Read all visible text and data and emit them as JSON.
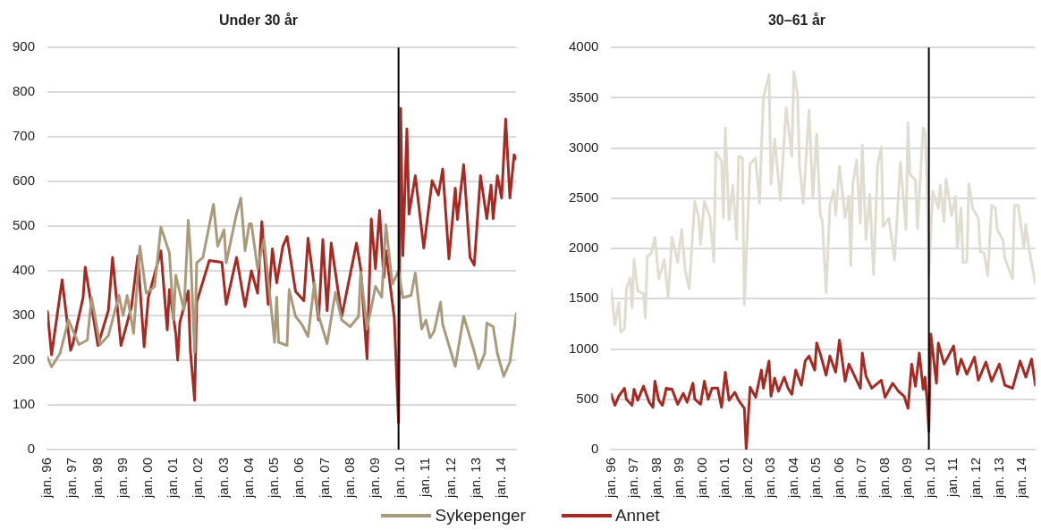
{
  "chart_data": [
    {
      "type": "line",
      "title": "Under 30 år",
      "grid": "y",
      "legend": "bottom",
      "xlim": [
        "1996-01",
        "2014-08"
      ],
      "xticks": [
        {
          "value": "1996-01",
          "label": "jan. 96"
        },
        {
          "value": "1997-01",
          "label": "jan. 97"
        },
        {
          "value": "1998-01",
          "label": "jan. 98"
        },
        {
          "value": "1999-01",
          "label": "jan. 99"
        },
        {
          "value": "2000-01",
          "label": "jan. 00"
        },
        {
          "value": "2001-01",
          "label": "jan. 01"
        },
        {
          "value": "2002-01",
          "label": "jan. 02"
        },
        {
          "value": "2003-01",
          "label": "jan. 03"
        },
        {
          "value": "2004-01",
          "label": "jan. 04"
        },
        {
          "value": "2005-01",
          "label": "jan. 05"
        },
        {
          "value": "2006-01",
          "label": "jan. 06"
        },
        {
          "value": "2007-01",
          "label": "jan. 07"
        },
        {
          "value": "2008-01",
          "label": "jan. 08"
        },
        {
          "value": "2009-01",
          "label": "jan. 09"
        },
        {
          "value": "2010-01",
          "label": "jan. 10"
        },
        {
          "value": "2011-01",
          "label": "jan. 11"
        },
        {
          "value": "2012-01",
          "label": "jan. 12"
        },
        {
          "value": "2013-01",
          "label": "jan. 13"
        },
        {
          "value": "2014-01",
          "label": "jan. 14"
        }
      ],
      "ylim": [
        0,
        900
      ],
      "yticks": [
        0,
        100,
        200,
        300,
        400,
        500,
        600,
        700,
        800,
        900
      ],
      "ref_lines": [
        {
          "axis": "x",
          "value": "2009-12",
          "color": "#000000"
        }
      ],
      "series": [
        {
          "name": "Sykepenger",
          "color": "#a99a7c",
          "x": [
            "1996-01",
            "1996-03",
            "1996-07",
            "1996-11",
            "1997-04",
            "1997-08",
            "1997-10",
            "1998-02",
            "1998-06",
            "1998-11",
            "1999-01",
            "1999-03",
            "1999-06",
            "1999-09",
            "1999-12",
            "2000-04",
            "2000-07",
            "2000-11",
            "2001-01",
            "2001-02",
            "2001-06",
            "2001-08",
            "2001-09",
            "2001-11",
            "2001-12",
            "2002-03",
            "2002-08",
            "2002-10",
            "2003-01",
            "2003-02",
            "2003-07",
            "2003-09",
            "2003-11",
            "2004-01",
            "2004-02",
            "2004-05",
            "2004-08",
            "2004-12",
            "2005-01",
            "2005-02",
            "2005-03",
            "2005-07",
            "2005-08",
            "2005-11",
            "2006-02",
            "2006-05",
            "2006-08",
            "2006-10",
            "2007-02",
            "2007-06",
            "2007-09",
            "2008-01",
            "2008-05",
            "2008-06",
            "2008-09",
            "2009-01",
            "2009-04",
            "2009-06",
            "2009-09",
            "2009-12",
            "2010-02",
            "2010-06",
            "2010-08",
            "2010-11",
            "2011-01",
            "2011-03",
            "2011-05",
            "2011-08",
            "2011-09",
            "2012-03",
            "2012-07",
            "2012-12",
            "2013-02",
            "2013-05",
            "2013-06",
            "2013-09",
            "2013-11",
            "2014-02",
            "2014-05",
            "2014-08"
          ],
          "values": [
            207,
            185,
            215,
            290,
            235,
            245,
            340,
            235,
            255,
            345,
            300,
            345,
            260,
            455,
            350,
            365,
            498,
            440,
            290,
            390,
            312,
            513,
            445,
            218,
            418,
            430,
            549,
            455,
            492,
            418,
            528,
            563,
            445,
            505,
            505,
            405,
            470,
            290,
            240,
            341,
            240,
            233,
            358,
            298,
            280,
            253,
            373,
            300,
            237,
            352,
            290,
            275,
            298,
            397,
            270,
            365,
            341,
            503,
            370,
            400,
            340,
            345,
            395,
            270,
            290,
            250,
            265,
            330,
            280,
            186,
            298,
            220,
            181,
            215,
            283,
            275,
            215,
            164,
            196,
            304
          ]
        },
        {
          "name": "Annet",
          "color": "#a52a24",
          "x": [
            "1996-01",
            "1996-03",
            "1996-08",
            "1996-12",
            "1997-01",
            "1997-06",
            "1997-07",
            "1998-01",
            "1998-06",
            "1998-08",
            "1998-12",
            "1999-05",
            "1999-08",
            "1999-11",
            "2000-01",
            "2000-07",
            "2000-10",
            "2000-11",
            "2001-02",
            "2001-03",
            "2001-04",
            "2001-08",
            "2001-09",
            "2001-11",
            "2001-12",
            "2002-06",
            "2002-12",
            "2003-02",
            "2003-07",
            "2003-11",
            "2004-02",
            "2004-05",
            "2004-07",
            "2004-10",
            "2004-12",
            "2005-02",
            "2005-05",
            "2005-07",
            "2005-11",
            "2006-03",
            "2006-05",
            "2006-10",
            "2006-12",
            "2007-02",
            "2007-04",
            "2007-09",
            "2008-04",
            "2008-06",
            "2008-09",
            "2008-11",
            "2009-01",
            "2009-03",
            "2009-05",
            "2009-06",
            "2009-10",
            "2009-12",
            "2010-01",
            "2010-02",
            "2010-04",
            "2010-05",
            "2010-08",
            "2010-12",
            "2011-04",
            "2011-07",
            "2011-09",
            "2011-12",
            "2012-03",
            "2012-04",
            "2012-07",
            "2012-10",
            "2012-12",
            "2013-03",
            "2013-06",
            "2013-08",
            "2013-09",
            "2013-11",
            "2014-01",
            "2014-03",
            "2014-05",
            "2014-07",
            "2014-08"
          ],
          "values": [
            309,
            212,
            380,
            222,
            235,
            341,
            408,
            233,
            311,
            430,
            233,
            319,
            433,
            230,
            341,
            445,
            268,
            358,
            260,
            200,
            285,
            355,
            220,
            110,
            330,
            423,
            419,
            325,
            430,
            320,
            400,
            350,
            510,
            325,
            449,
            373,
            455,
            477,
            354,
            333,
            473,
            290,
            470,
            311,
            462,
            298,
            462,
            405,
            203,
            516,
            405,
            535,
            385,
            445,
            294,
            60,
            764,
            434,
            718,
            527,
            613,
            451,
            602,
            570,
            628,
            427,
            585,
            515,
            638,
            430,
            413,
            613,
            517,
            592,
            517,
            613,
            563,
            740,
            563,
            660,
            650
          ]
        }
      ]
    },
    {
      "type": "line",
      "title": "30–61 år",
      "grid": "y",
      "xlim": [
        "1996-01",
        "2014-08"
      ],
      "xticks": [
        {
          "value": "1996-01",
          "label": "jan. 96"
        },
        {
          "value": "1997-01",
          "label": "jan. 97"
        },
        {
          "value": "1998-01",
          "label": "jan. 98"
        },
        {
          "value": "1999-01",
          "label": "jan. 99"
        },
        {
          "value": "2000-01",
          "label": "jan. 00"
        },
        {
          "value": "2001-01",
          "label": "jan. 01"
        },
        {
          "value": "2002-01",
          "label": "jan. 02"
        },
        {
          "value": "2003-01",
          "label": "jan. 03"
        },
        {
          "value": "2004-01",
          "label": "jan. 04"
        },
        {
          "value": "2005-01",
          "label": "jan. 05"
        },
        {
          "value": "2006-01",
          "label": "jan. 06"
        },
        {
          "value": "2007-01",
          "label": "jan. 07"
        },
        {
          "value": "2008-01",
          "label": "jan. 08"
        },
        {
          "value": "2009-01",
          "label": "jan. 09"
        },
        {
          "value": "2010-01",
          "label": "jan. 10"
        },
        {
          "value": "2011-01",
          "label": "jan. 11"
        },
        {
          "value": "2012-01",
          "label": "jan. 12"
        },
        {
          "value": "2013-01",
          "label": "jan. 13"
        },
        {
          "value": "2014-01",
          "label": "jan. 14"
        }
      ],
      "ylim": [
        0,
        4000
      ],
      "yticks": [
        0,
        500,
        1000,
        1500,
        2000,
        2500,
        3000,
        3500,
        4000
      ],
      "ref_lines": [
        {
          "axis": "x",
          "value": "2009-12",
          "color": "#000000"
        }
      ],
      "series": [
        {
          "color": "#e0dcd0",
          "x": [
            "1996-01",
            "1996-03",
            "1996-05",
            "1996-06",
            "1996-08",
            "1996-09",
            "1996-11",
            "1996-12",
            "1997-01",
            "1997-03",
            "1997-06",
            "1997-07",
            "1997-08",
            "1997-10",
            "1997-12",
            "1998-02",
            "1998-05",
            "1998-07",
            "1998-09",
            "1998-12",
            "1999-02",
            "1999-04",
            "1999-06",
            "1999-09",
            "1999-11",
            "1999-12",
            "2000-02",
            "2000-05",
            "2000-07",
            "2000-08",
            "2000-11",
            "2000-12",
            "2001-01",
            "2001-03",
            "2001-05",
            "2001-07",
            "2001-08",
            "2001-10",
            "2001-11",
            "2002-02",
            "2002-05",
            "2002-07",
            "2002-09",
            "2002-12",
            "2003-01",
            "2003-03",
            "2003-06",
            "2003-09",
            "2003-12",
            "2004-01",
            "2004-03",
            "2004-04",
            "2004-06",
            "2004-09",
            "2004-11",
            "2005-01",
            "2005-03",
            "2005-04",
            "2005-06",
            "2005-08",
            "2005-10",
            "2005-11",
            "2006-01",
            "2006-04",
            "2006-06",
            "2006-07",
            "2006-08",
            "2006-10",
            "2006-12",
            "2007-01",
            "2007-03",
            "2007-05",
            "2007-07",
            "2007-09",
            "2007-11",
            "2007-12",
            "2008-03",
            "2008-06",
            "2008-09",
            "2008-12",
            "2009-01",
            "2009-02",
            "2009-05",
            "2009-06",
            "2009-09",
            "2009-10",
            "2009-11",
            "2009-12",
            "2010-02",
            "2010-05",
            "2010-06",
            "2010-08",
            "2010-09",
            "2010-12",
            "2011-02",
            "2011-03",
            "2011-05",
            "2011-06",
            "2011-08",
            "2011-09",
            "2011-11",
            "2012-02",
            "2012-03",
            "2012-05",
            "2012-07",
            "2012-09",
            "2012-11",
            "2012-12",
            "2013-03",
            "2013-04",
            "2013-08",
            "2013-09",
            "2013-11",
            "2014-02",
            "2014-03",
            "2014-05",
            "2014-08"
          ],
          "values": [
            1600,
            1240,
            1460,
            1170,
            1200,
            1600,
            1710,
            1410,
            1890,
            1580,
            1550,
            1310,
            1920,
            1950,
            2110,
            1700,
            1890,
            1510,
            2110,
            1860,
            2190,
            1780,
            1600,
            2470,
            2310,
            2040,
            2470,
            2310,
            1870,
            2960,
            2870,
            2310,
            3200,
            2290,
            2630,
            2090,
            2920,
            2900,
            1440,
            2840,
            2900,
            2450,
            3500,
            3730,
            2640,
            3090,
            2480,
            3400,
            2920,
            3760,
            3540,
            2840,
            2450,
            3380,
            2520,
            3140,
            2330,
            2280,
            1560,
            2430,
            2580,
            2330,
            2820,
            2310,
            2520,
            1830,
            2640,
            2880,
            2250,
            3030,
            2090,
            2540,
            1740,
            2820,
            3010,
            2220,
            2300,
            1890,
            2860,
            2190,
            3250,
            2740,
            2680,
            2200,
            3200,
            3170,
            2660,
            1710,
            2570,
            2400,
            2630,
            2270,
            2690,
            2330,
            2520,
            2000,
            2400,
            1860,
            1870,
            2640,
            2400,
            2300,
            1970,
            1960,
            1730,
            2430,
            2400,
            2190,
            2080,
            1900,
            1700,
            2430,
            2430,
            2000,
            2240,
            1960,
            1650
          ]
        },
        {
          "color": "#a52a24",
          "x": [
            "1996-01",
            "1996-03",
            "1996-05",
            "1996-08",
            "1996-09",
            "1996-12",
            "1997-01",
            "1997-03",
            "1997-06",
            "1997-09",
            "1997-11",
            "1997-12",
            "1998-02",
            "1998-04",
            "1998-06",
            "1998-09",
            "1998-12",
            "1999-03",
            "1999-05",
            "1999-08",
            "1999-09",
            "1999-12",
            "2000-02",
            "2000-04",
            "2000-06",
            "2000-09",
            "2000-11",
            "2001-01",
            "2001-03",
            "2001-06",
            "2001-08",
            "2001-11",
            "2001-12",
            "2002-02",
            "2002-05",
            "2002-08",
            "2002-09",
            "2002-12",
            "2003-01",
            "2003-03",
            "2003-05",
            "2003-08",
            "2003-10",
            "2003-12",
            "2004-02",
            "2004-05",
            "2004-07",
            "2004-09",
            "2004-12",
            "2005-01",
            "2005-03",
            "2005-06",
            "2005-08",
            "2005-11",
            "2006-01",
            "2006-04",
            "2006-06",
            "2006-12",
            "2007-01",
            "2007-03",
            "2007-06",
            "2007-11",
            "2008-01",
            "2008-05",
            "2008-08",
            "2008-11",
            "2009-01",
            "2009-03",
            "2009-05",
            "2009-07",
            "2009-09",
            "2009-10",
            "2009-11",
            "2009-12",
            "2010-01",
            "2010-04",
            "2010-05",
            "2010-08",
            "2010-10",
            "2011-01",
            "2011-03",
            "2011-05",
            "2011-08",
            "2011-12",
            "2012-02",
            "2012-06",
            "2012-09",
            "2013-01",
            "2013-04",
            "2013-08",
            "2013-12",
            "2014-03",
            "2014-06",
            "2014-08"
          ],
          "values": [
            550,
            440,
            530,
            610,
            500,
            440,
            600,
            490,
            630,
            470,
            420,
            680,
            490,
            440,
            610,
            600,
            450,
            560,
            470,
            660,
            500,
            450,
            680,
            500,
            610,
            610,
            420,
            770,
            490,
            570,
            490,
            410,
            0,
            620,
            520,
            790,
            610,
            880,
            530,
            710,
            580,
            720,
            610,
            550,
            790,
            640,
            880,
            930,
            790,
            1060,
            950,
            740,
            930,
            770,
            1090,
            680,
            850,
            610,
            960,
            730,
            610,
            690,
            520,
            660,
            580,
            530,
            410,
            850,
            630,
            960,
            600,
            720,
            500,
            180,
            1150,
            660,
            1060,
            850,
            920,
            1030,
            750,
            900,
            750,
            920,
            690,
            870,
            680,
            850,
            640,
            610,
            880,
            720,
            900,
            640
          ]
        }
      ]
    }
  ]
}
